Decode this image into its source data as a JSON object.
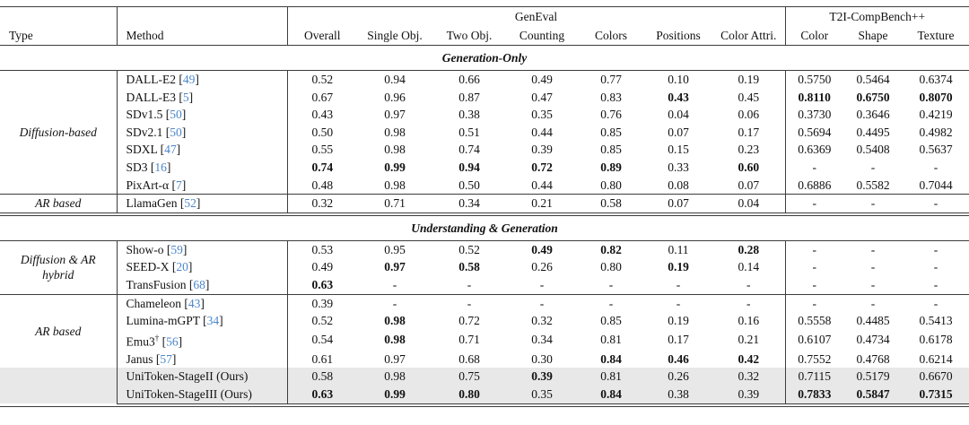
{
  "table": {
    "citation_color": "#4a86c9",
    "highlight_color": "#e8e8e8",
    "header": {
      "type": "Type",
      "method": "Method",
      "group_geneval": "GenEval",
      "group_t2i": "T2I-CompBench++",
      "columns": [
        "Overall",
        "Single Obj.",
        "Two Obj.",
        "Counting",
        "Colors",
        "Positions",
        "Color Attri.",
        "Color",
        "Shape",
        "Texture"
      ]
    },
    "sections": [
      {
        "title": "Generation-Only",
        "groups": [
          {
            "type_lines": [
              "Diffusion-based"
            ],
            "rule_above": false,
            "highlight": false,
            "rows": [
              {
                "method": "DALL-E2",
                "ref": "49",
                "values": [
                  "0.52",
                  "0.94",
                  "0.66",
                  "0.49",
                  "0.77",
                  "0.10",
                  "0.19",
                  "0.5750",
                  "0.5464",
                  "0.6374"
                ],
                "bold": []
              },
              {
                "method": "DALL-E3",
                "ref": "5",
                "values": [
                  "0.67",
                  "0.96",
                  "0.87",
                  "0.47",
                  "0.83",
                  "0.43",
                  "0.45",
                  "0.8110",
                  "0.6750",
                  "0.8070"
                ],
                "bold": [
                  5,
                  7,
                  8,
                  9
                ]
              },
              {
                "method": "SDv1.5",
                "ref": "50",
                "values": [
                  "0.43",
                  "0.97",
                  "0.38",
                  "0.35",
                  "0.76",
                  "0.04",
                  "0.06",
                  "0.3730",
                  "0.3646",
                  "0.4219"
                ],
                "bold": []
              },
              {
                "method": "SDv2.1",
                "ref": "50",
                "values": [
                  "0.50",
                  "0.98",
                  "0.51",
                  "0.44",
                  "0.85",
                  "0.07",
                  "0.17",
                  "0.5694",
                  "0.4495",
                  "0.4982"
                ],
                "bold": []
              },
              {
                "method": "SDXL",
                "ref": "47",
                "values": [
                  "0.55",
                  "0.98",
                  "0.74",
                  "0.39",
                  "0.85",
                  "0.15",
                  "0.23",
                  "0.6369",
                  "0.5408",
                  "0.5637"
                ],
                "bold": []
              },
              {
                "method": "SD3",
                "ref": "16",
                "values": [
                  "0.74",
                  "0.99",
                  "0.94",
                  "0.72",
                  "0.89",
                  "0.33",
                  "0.60",
                  "-",
                  "-",
                  "-"
                ],
                "bold": [
                  0,
                  1,
                  2,
                  3,
                  4,
                  6
                ]
              },
              {
                "method": "PixArt-α",
                "ref": "7",
                "values": [
                  "0.48",
                  "0.98",
                  "0.50",
                  "0.44",
                  "0.80",
                  "0.08",
                  "0.07",
                  "0.6886",
                  "0.5582",
                  "0.7044"
                ],
                "bold": []
              }
            ]
          },
          {
            "type_lines": [
              "AR based"
            ],
            "rule_above": true,
            "highlight": false,
            "rows": [
              {
                "method": "LlamaGen",
                "ref": "52",
                "values": [
                  "0.32",
                  "0.71",
                  "0.34",
                  "0.21",
                  "0.58",
                  "0.07",
                  "0.04",
                  "-",
                  "-",
                  "-"
                ],
                "bold": []
              }
            ]
          }
        ]
      },
      {
        "title": "Understanding & Generation",
        "groups": [
          {
            "type_lines": [
              "Diffusion & AR",
              "hybrid"
            ],
            "rule_above": false,
            "highlight": false,
            "rows": [
              {
                "method": "Show-o",
                "ref": "59",
                "values": [
                  "0.53",
                  "0.95",
                  "0.52",
                  "0.49",
                  "0.82",
                  "0.11",
                  "0.28",
                  "-",
                  "-",
                  "-"
                ],
                "bold": [
                  3,
                  4,
                  6
                ]
              },
              {
                "method": "SEED-X",
                "ref": "20",
                "values": [
                  "0.49",
                  "0.97",
                  "0.58",
                  "0.26",
                  "0.80",
                  "0.19",
                  "0.14",
                  "-",
                  "-",
                  "-"
                ],
                "bold": [
                  1,
                  2,
                  5
                ]
              },
              {
                "method": "TransFusion",
                "ref": "68",
                "values": [
                  "0.63",
                  "-",
                  "-",
                  "-",
                  "-",
                  "-",
                  "-",
                  "-",
                  "-",
                  "-"
                ],
                "bold": [
                  0
                ]
              }
            ]
          },
          {
            "type_lines": [
              "AR based"
            ],
            "rule_above": true,
            "highlight": false,
            "rows": [
              {
                "method": "Chameleon",
                "ref": "43",
                "values": [
                  "0.39",
                  "-",
                  "-",
                  "-",
                  "-",
                  "-",
                  "-",
                  "-",
                  "-",
                  "-"
                ],
                "bold": []
              },
              {
                "method": "Lumina-mGPT",
                "ref": "34",
                "values": [
                  "0.52",
                  "0.98",
                  "0.72",
                  "0.32",
                  "0.85",
                  "0.19",
                  "0.16",
                  "0.5558",
                  "0.4485",
                  "0.5413"
                ],
                "bold": [
                  1
                ]
              },
              {
                "method": "Emu3",
                "sup": "†",
                "ref": "56",
                "values": [
                  "0.54",
                  "0.98",
                  "0.71",
                  "0.34",
                  "0.81",
                  "0.17",
                  "0.21",
                  "0.6107",
                  "0.4734",
                  "0.6178"
                ],
                "bold": [
                  1
                ]
              },
              {
                "method": "Janus",
                "ref": "57",
                "values": [
                  "0.61",
                  "0.97",
                  "0.68",
                  "0.30",
                  "0.84",
                  "0.46",
                  "0.42",
                  "0.7552",
                  "0.4768",
                  "0.6214"
                ],
                "bold": [
                  4,
                  5,
                  6
                ]
              }
            ]
          },
          {
            "type_lines": [],
            "rule_above": false,
            "highlight": true,
            "rows": [
              {
                "method": "UniToken-StageII (Ours)",
                "values": [
                  "0.58",
                  "0.98",
                  "0.75",
                  "0.39",
                  "0.81",
                  "0.26",
                  "0.32",
                  "0.7115",
                  "0.5179",
                  "0.6670"
                ],
                "bold": [
                  3
                ]
              },
              {
                "method": "UniToken-StageIII (Ours)",
                "values": [
                  "0.63",
                  "0.99",
                  "0.80",
                  "0.35",
                  "0.84",
                  "0.38",
                  "0.39",
                  "0.7833",
                  "0.5847",
                  "0.7315"
                ],
                "bold": [
                  0,
                  1,
                  2,
                  4,
                  7,
                  8,
                  9
                ]
              }
            ]
          }
        ]
      }
    ]
  }
}
